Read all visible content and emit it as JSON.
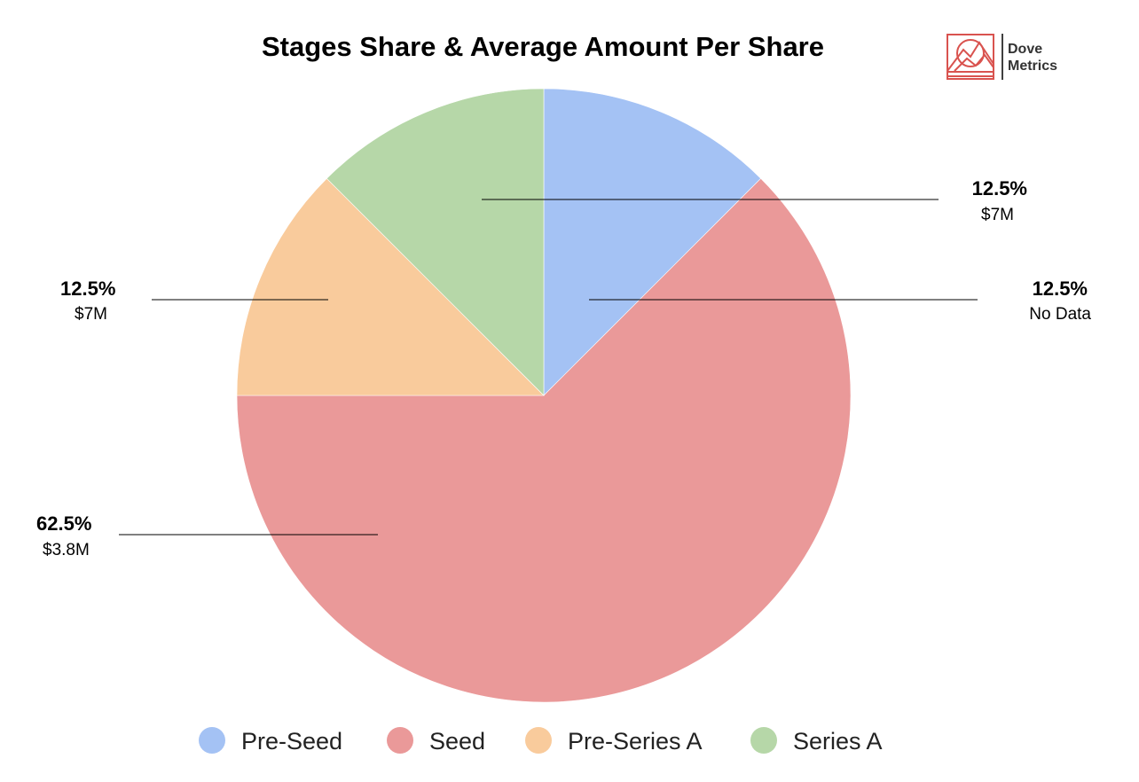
{
  "chart_data": {
    "type": "pie",
    "title": "Stages Share & Average Amount Per Share",
    "slices": [
      {
        "name": "Pre-Seed",
        "value": 12.5,
        "percent_label": "12.5%",
        "amount_label": "No Data",
        "color": "#a4c2f4"
      },
      {
        "name": "Seed",
        "value": 62.5,
        "percent_label": "62.5%",
        "amount_label": "$3.8M",
        "color": "#ea9999"
      },
      {
        "name": "Pre-Series A",
        "value": 12.5,
        "percent_label": "12.5%",
        "amount_label": "$7M",
        "color": "#f9cb9c"
      },
      {
        "name": "Series A",
        "value": 12.5,
        "percent_label": "12.5%",
        "amount_label": "$7M",
        "color": "#b6d7a8"
      }
    ],
    "legend_position": "bottom"
  },
  "logo": {
    "line1": "Dove",
    "line2": "Metrics",
    "color": "#d9534f"
  }
}
